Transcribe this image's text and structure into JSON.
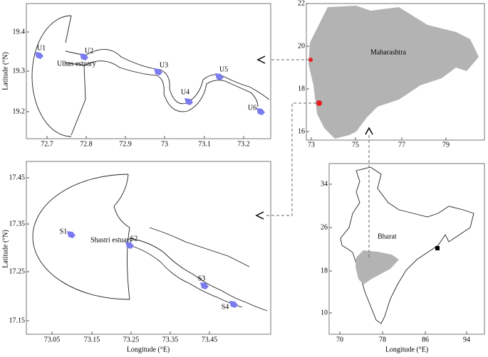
{
  "ulhas": {
    "estuary_label": "Ulhas estuary",
    "y_label": "Latitude (°N)",
    "y_ticks": [
      "19.4",
      "19.3",
      "19.2"
    ],
    "x_ticks": [
      "72.7",
      "72.8",
      "72.9",
      "73",
      "73.1",
      "73.2"
    ],
    "stations": [
      "U1",
      "U2",
      "U3",
      "U4",
      "U5",
      "U6"
    ]
  },
  "maharashtra": {
    "label": "Maharashtra",
    "y_ticks": [
      "22",
      "20",
      "18",
      "16"
    ],
    "x_ticks": [
      "73",
      "75",
      "77",
      "79"
    ]
  },
  "shastri": {
    "estuary_label": "Shastri estuary",
    "y_label": "Latitude (°N)",
    "x_label": "Longitude (°E)",
    "y_ticks": [
      "17.45",
      "17.35",
      "17.25",
      "17.15"
    ],
    "x_ticks": [
      "73.05",
      "73.15",
      "73.25",
      "73.35",
      "73.45"
    ],
    "stations": [
      "S1",
      "S2",
      "S3",
      "S4"
    ]
  },
  "bharat": {
    "label": "Bharat",
    "x_label": "Longitude (°E)",
    "y_ticks": [
      "34",
      "26",
      "18",
      "10"
    ],
    "x_ticks": [
      "70",
      "78",
      "86",
      "94"
    ]
  }
}
